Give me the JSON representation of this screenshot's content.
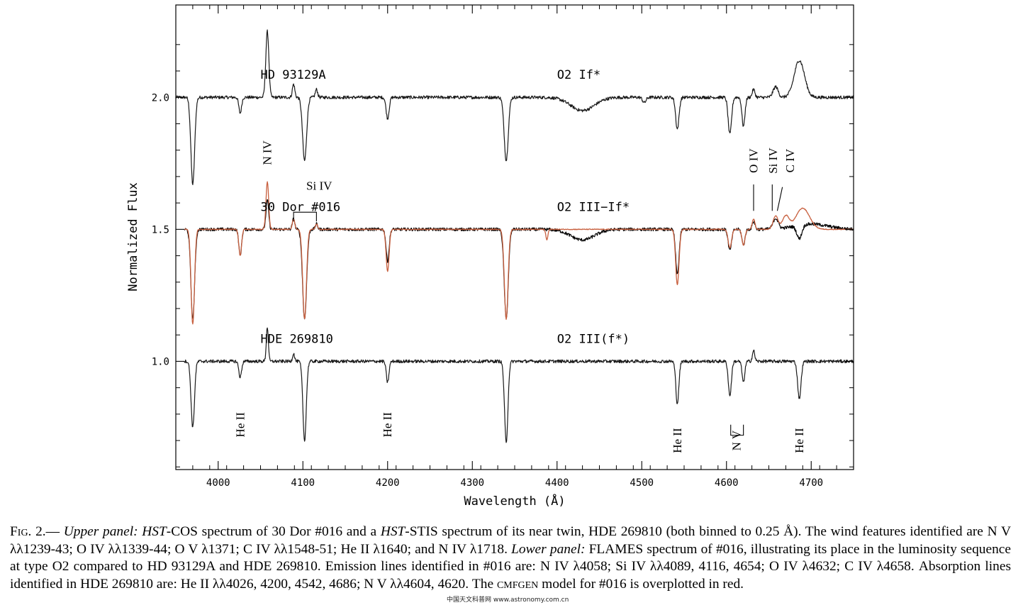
{
  "chart_data": {
    "type": "line",
    "xlabel": "Wavelength (Å)",
    "ylabel": "Normalized Flux",
    "xlim": [
      3950,
      4750
    ],
    "ylim": [
      0.59,
      2.35
    ],
    "x_ticks": [
      4000,
      4100,
      4200,
      4300,
      4400,
      4500,
      4600,
      4700
    ],
    "x_tick_labels": [
      "4000",
      "4100",
      "4200",
      "4300",
      "4400",
      "4500",
      "4600",
      "4700"
    ],
    "y_ticks": [
      1.0,
      1.5,
      2.0
    ],
    "y_tick_labels": [
      "1.0",
      "1.5",
      "2.0"
    ],
    "grid": false,
    "series": [
      {
        "name": "HD 93129A",
        "spectral_type": "O2 If*",
        "color": "#1a1a1a",
        "continuum": 2.0,
        "features": [
          {
            "x": 3970,
            "depth": -0.33,
            "width": 2.2
          },
          {
            "x": 4026,
            "depth": -0.06,
            "width": 1.6
          },
          {
            "x": 4058,
            "depth": 0.25,
            "width": 1.8
          },
          {
            "x": 4089,
            "depth": 0.05,
            "width": 1.4
          },
          {
            "x": 4102,
            "depth": -0.24,
            "width": 2.4
          },
          {
            "x": 4116,
            "depth": 0.03,
            "width": 1.4
          },
          {
            "x": 4200,
            "depth": -0.08,
            "width": 1.8
          },
          {
            "x": 4340,
            "depth": -0.24,
            "width": 2.4
          },
          {
            "x": 4430,
            "depth": -0.05,
            "width": 14
          },
          {
            "x": 4503,
            "depth": -0.02,
            "width": 2.0
          },
          {
            "x": 4542,
            "depth": -0.12,
            "width": 2.0
          },
          {
            "x": 4604,
            "depth": -0.14,
            "width": 2.0
          },
          {
            "x": 4620,
            "depth": -0.11,
            "width": 1.8
          },
          {
            "x": 4632,
            "depth": 0.03,
            "width": 1.6
          },
          {
            "x": 4658,
            "depth": 0.04,
            "width": 3.0
          },
          {
            "x": 4686,
            "depth": 0.14,
            "width": 6.0
          }
        ]
      },
      {
        "name": "30 Dor #016",
        "spectral_type": "O2 III−If*",
        "color": "#000000",
        "continuum": 1.5,
        "features": [
          {
            "x": 3970,
            "depth": -0.34,
            "width": 2.2
          },
          {
            "x": 4026,
            "depth": -0.1,
            "width": 1.6
          },
          {
            "x": 4058,
            "depth": 0.11,
            "width": 1.6
          },
          {
            "x": 4089,
            "depth": 0.04,
            "width": 1.4
          },
          {
            "x": 4102,
            "depth": -0.34,
            "width": 2.4
          },
          {
            "x": 4116,
            "depth": 0.02,
            "width": 1.4
          },
          {
            "x": 4200,
            "depth": -0.12,
            "width": 1.8
          },
          {
            "x": 4340,
            "depth": -0.34,
            "width": 2.4
          },
          {
            "x": 4430,
            "depth": -0.04,
            "width": 14
          },
          {
            "x": 4542,
            "depth": -0.17,
            "width": 2.0
          },
          {
            "x": 4604,
            "depth": -0.08,
            "width": 2.0
          },
          {
            "x": 4620,
            "depth": -0.06,
            "width": 1.8
          },
          {
            "x": 4632,
            "depth": 0.03,
            "width": 1.6
          },
          {
            "x": 4658,
            "depth": 0.04,
            "width": 3.0
          },
          {
            "x": 4686,
            "depth": -0.05,
            "width": 3.0
          },
          {
            "x": 4700,
            "depth": 0.02,
            "width": 20
          }
        ]
      },
      {
        "name": "CMFGEN model",
        "color": "#c8603f",
        "continuum": 1.5,
        "features": [
          {
            "x": 3970,
            "depth": -0.36,
            "width": 2.0
          },
          {
            "x": 4026,
            "depth": -0.1,
            "width": 1.6
          },
          {
            "x": 4058,
            "depth": 0.18,
            "width": 1.6
          },
          {
            "x": 4089,
            "depth": 0.04,
            "width": 1.4
          },
          {
            "x": 4102,
            "depth": -0.34,
            "width": 2.2
          },
          {
            "x": 4116,
            "depth": 0.02,
            "width": 1.4
          },
          {
            "x": 4200,
            "depth": -0.16,
            "width": 1.8
          },
          {
            "x": 4340,
            "depth": -0.34,
            "width": 2.2
          },
          {
            "x": 4388,
            "depth": -0.04,
            "width": 1.2
          },
          {
            "x": 4542,
            "depth": -0.21,
            "width": 2.0
          },
          {
            "x": 4604,
            "depth": -0.07,
            "width": 2.0
          },
          {
            "x": 4620,
            "depth": -0.06,
            "width": 1.8
          },
          {
            "x": 4632,
            "depth": 0.04,
            "width": 1.6
          },
          {
            "x": 4658,
            "depth": 0.05,
            "width": 3.0
          },
          {
            "x": 4670,
            "depth": 0.05,
            "width": 4.0
          },
          {
            "x": 4690,
            "depth": 0.08,
            "width": 8.0
          }
        ]
      },
      {
        "name": "HDE 269810",
        "spectral_type": "O2 III(f*)",
        "color": "#1a1a1a",
        "continuum": 1.0,
        "features": [
          {
            "x": 3970,
            "depth": -0.25,
            "width": 2.0
          },
          {
            "x": 4026,
            "depth": -0.06,
            "width": 1.6
          },
          {
            "x": 4058,
            "depth": 0.13,
            "width": 1.2
          },
          {
            "x": 4089,
            "depth": 0.03,
            "width": 1.2
          },
          {
            "x": 4102,
            "depth": -0.3,
            "width": 2.0
          },
          {
            "x": 4200,
            "depth": -0.08,
            "width": 1.6
          },
          {
            "x": 4340,
            "depth": -0.31,
            "width": 2.0
          },
          {
            "x": 4542,
            "depth": -0.16,
            "width": 1.8
          },
          {
            "x": 4604,
            "depth": -0.13,
            "width": 1.8
          },
          {
            "x": 4620,
            "depth": -0.08,
            "width": 1.6
          },
          {
            "x": 4632,
            "depth": 0.04,
            "width": 1.4
          },
          {
            "x": 4686,
            "depth": -0.14,
            "width": 2.0
          }
        ]
      }
    ],
    "annotations": [
      {
        "text": "HD 93129A",
        "x": 4050,
        "y": 2.07
      },
      {
        "text": "O2 If*",
        "x": 4400,
        "y": 2.07
      },
      {
        "text": "30 Dor #016",
        "x": 4050,
        "y": 1.57
      },
      {
        "text": "O2 III−If*",
        "x": 4400,
        "y": 1.57
      },
      {
        "text": "HDE 269810",
        "x": 4050,
        "y": 1.07
      },
      {
        "text": "O2 III(f*)",
        "x": 4400,
        "y": 1.07
      },
      {
        "text": "N IV",
        "x": 4058,
        "y": 1.79,
        "rotate": true
      },
      {
        "text": "Si IV",
        "x": 4104,
        "y": 1.65,
        "rotate": false
      },
      {
        "text": "O IV",
        "x": 4632,
        "y": 1.76,
        "rotate": true
      },
      {
        "text": "Si IV",
        "x": 4655,
        "y": 1.76,
        "rotate": true
      },
      {
        "text": "C IV",
        "x": 4675,
        "y": 1.76,
        "rotate": true
      },
      {
        "text": "He II",
        "x": 4026,
        "y": 0.76,
        "rotate": true
      },
      {
        "text": "He II",
        "x": 4200,
        "y": 0.76,
        "rotate": true
      },
      {
        "text": "He II",
        "x": 4542,
        "y": 0.7,
        "rotate": true
      },
      {
        "text": "N V",
        "x": 4612,
        "y": 0.7,
        "rotate": true
      },
      {
        "text": "He II",
        "x": 4686,
        "y": 0.7,
        "rotate": true
      }
    ]
  },
  "caption": {
    "fig_label": "Fig. 2.",
    "dash": "—",
    "part1_italic": "Upper panel:",
    "hst1": "HST",
    "part2": "-COS spectrum of 30 Dor #016 and a ",
    "hst2": "HST",
    "part3": "-STIS spectrum of its near twin, HDE 269810 (both binned to 0.25 Å). The wind features identified are N V λλ1239-43; O IV λλ1339-44; O V λ1371; C IV λλ1548-51; He II λ1640; and N IV λ1718. ",
    "part4_italic": "Lower panel:",
    "part5": " FLAMES spectrum of #016, illustrating its place in the luminosity sequence at type O2 compared to HD 93129A and HDE 269810. Emission lines identified in #016 are: N IV λ4058; Si IV λλ4089, 4116, 4654; O IV λ4632; C IV λ4658. Absorption lines identified in HDE 269810 are: He II λλ4026, 4200, 4542, 4686; N V λλ4604, 4620. The ",
    "cmfgen": "cmfgen",
    "part6": " model for #016 is overplotted in red."
  },
  "watermark": "中国天文科普网 www.astronomy.com.cn"
}
